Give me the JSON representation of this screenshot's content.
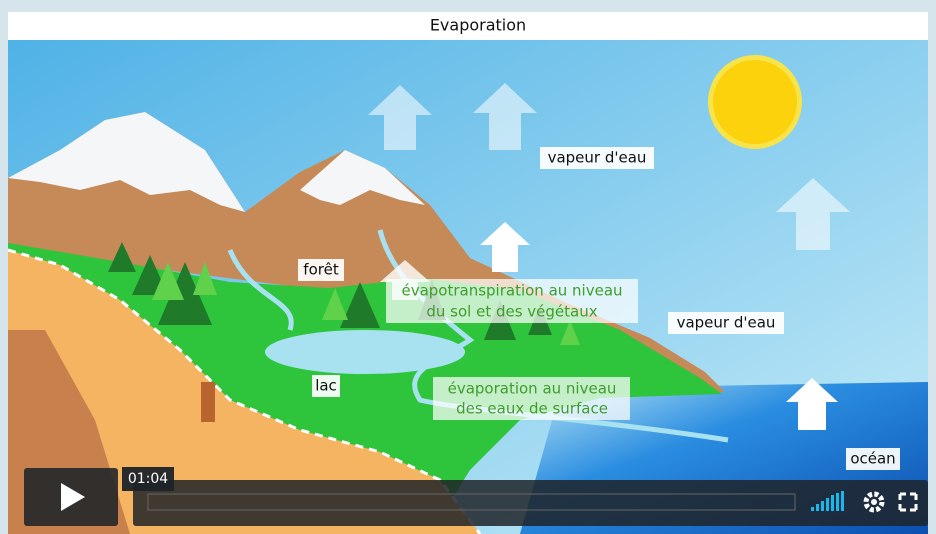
{
  "header": {
    "title": "Evaporation"
  },
  "labels": {
    "vapour_top": "vapeur d'eau",
    "forest": "forêt",
    "evapotranspiration": {
      "lines": [
        "évapotranspiration au niveau",
        "du sol et des végétaux"
      ]
    },
    "vapour_right": "vapeur d'eau",
    "lake": "lac",
    "evaporation": {
      "lines": [
        "évaporation au niveau",
        "des eaux de surface"
      ]
    },
    "ocean": "océan"
  },
  "player": {
    "time": "01:04"
  }
}
